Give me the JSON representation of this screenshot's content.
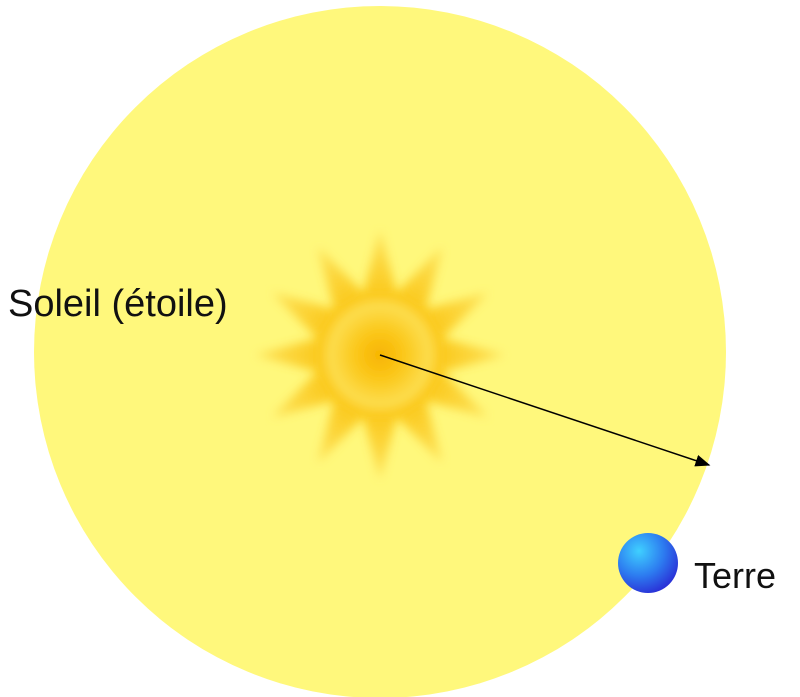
{
  "labels": {
    "sun": "Soleil (étoile)",
    "earth": "Terre"
  }
}
